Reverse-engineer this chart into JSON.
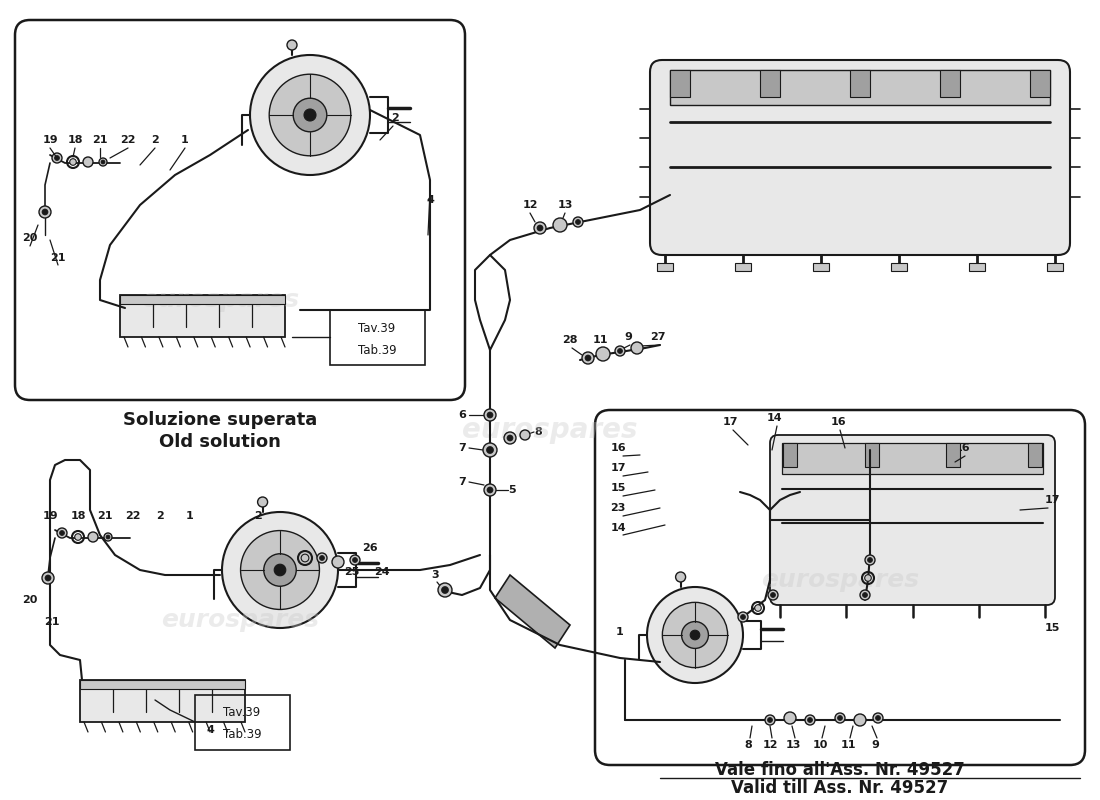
{
  "bg_color": "#ffffff",
  "line_color": "#1a1a1a",
  "gray1": "#e8e8e8",
  "gray2": "#c8c8c8",
  "gray3": "#a0a0a0",
  "watermark_color": "#c8c8c8",
  "watermark_text": "eurospares",
  "old_solution_it": "Soluzione superata",
  "old_solution_en": "Old solution",
  "validity_it": "Vale fino all'Ass. Nr. 49527",
  "validity_en": "Valid till Ass. Nr. 49527"
}
